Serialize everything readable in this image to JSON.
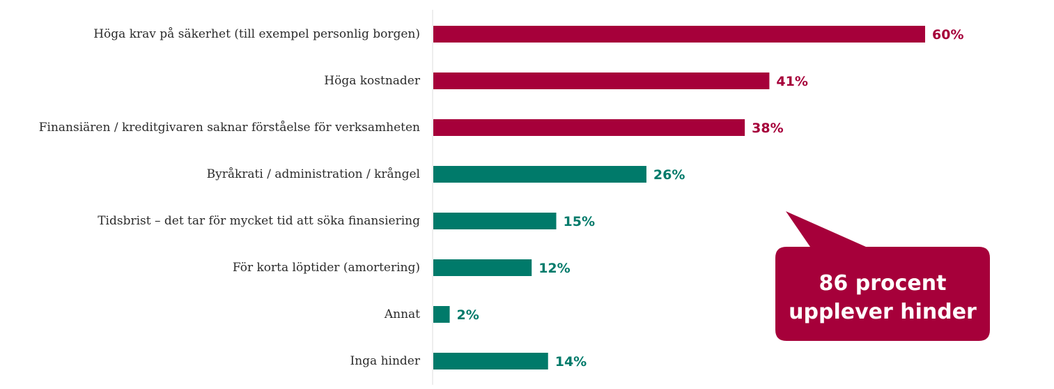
{
  "chart_data": {
    "type": "bar",
    "orientation": "horizontal",
    "categories": [
      "Höga krav på säkerhet (till exempel personlig borgen)",
      "Höga kostnader",
      "Finansiären / kreditgivaren saknar förståelse för verksamheten",
      "Byråkrati / administration / krångel",
      "Tidsbrist – det tar för mycket tid att söka finansiering",
      "För korta löptider (amortering)",
      "Annat",
      "Inga hinder"
    ],
    "values": [
      60,
      41,
      38,
      26,
      15,
      12,
      2,
      14
    ],
    "value_labels": [
      "60%",
      "41%",
      "38%",
      "26%",
      "15%",
      "12%",
      "2%",
      "14%"
    ],
    "bar_colors": [
      "#a6003a",
      "#a6003a",
      "#a6003a",
      "#007a6a",
      "#007a6a",
      "#007a6a",
      "#007a6a",
      "#007a6a"
    ],
    "xlim": [
      0,
      60
    ],
    "grid": false,
    "title": "",
    "xlabel": "",
    "ylabel": "",
    "callout": {
      "lines": [
        "86 procent",
        "upplever hinder"
      ],
      "color": "#a6003a"
    }
  }
}
